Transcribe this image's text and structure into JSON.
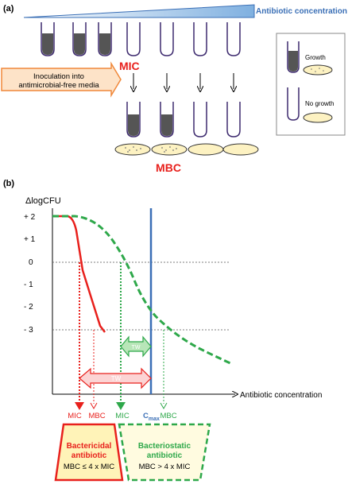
{
  "panel_a": {
    "label": "(a)",
    "gradient_label": "Antibiotic concentration",
    "mic_label": "MIC",
    "mbc_label": "MBC",
    "inoculation_text": [
      "Inoculation into",
      "antimicrobial-free media"
    ],
    "legend": {
      "growth": "Growth",
      "no_growth": "No growth"
    }
  },
  "panel_b": {
    "label": "(b)",
    "y_axis_title": "ΔlogCFU",
    "y_ticks": [
      "+ 2",
      "+ 1",
      "0",
      "- 1",
      "- 2",
      "- 3"
    ],
    "x_axis_title": "Antibiotic concentration",
    "tw_label": "TW",
    "cmax_label": "C",
    "cmax_sub": "max",
    "bottom_labels": {
      "red_mic": "MIC",
      "red_mbc": "MBC",
      "green_mic": "MIC",
      "green_mbc": "MBC"
    },
    "bactericidal": [
      "Bactericidal",
      "antibiotic",
      "MBC ≤ 4 x MIC"
    ],
    "bacteriostatic": [
      "Bacteriostatic",
      "antibiotic",
      "MBC > 4 x MIC"
    ]
  },
  "colors": {
    "red": "#e8201c",
    "green": "#2ea84a",
    "blue": "#3a6fb6",
    "tube_fill": "#4a4a4a",
    "tube_outline": "#3d2a6e",
    "orange": "#f0883a",
    "orange_fill": "#fde3c8",
    "yellow_fill": "#fff3b8",
    "plate_fill": "#fdf2c2"
  }
}
